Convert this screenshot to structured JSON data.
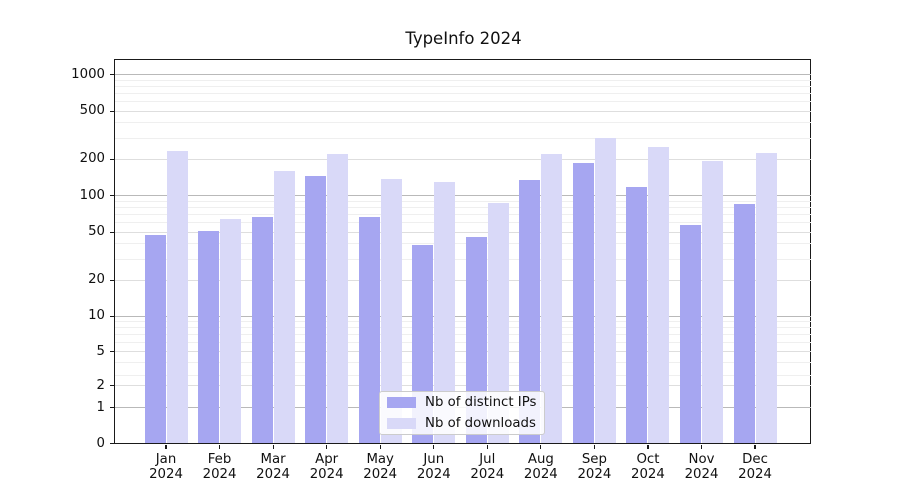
{
  "title": "TypeInfo 2024",
  "chart_data": {
    "type": "bar",
    "title": "TypeInfo 2024",
    "categories": [
      "Jan 2024",
      "Feb 2024",
      "Mar 2024",
      "Apr 2024",
      "May 2024",
      "Jun 2024",
      "Jul 2024",
      "Aug 2024",
      "Sep 2024",
      "Oct 2024",
      "Nov 2024",
      "Dec 2024"
    ],
    "series": [
      {
        "name": "Nb of distinct IPs",
        "color": "#a6a6f1",
        "values": [
          47,
          51,
          67,
          145,
          67,
          39,
          46,
          136,
          185,
          118,
          57,
          85
        ]
      },
      {
        "name": "Nb of downloads",
        "color": "#d9d9f8",
        "values": [
          235,
          64,
          160,
          222,
          137,
          130,
          87,
          220,
          300,
          252,
          193,
          225
        ]
      }
    ],
    "xlabel": "",
    "ylabel": "",
    "y_ticks": [
      1000,
      500,
      200,
      100,
      50,
      20,
      10,
      5,
      2,
      1,
      0
    ],
    "y_scale": "log-like (asinh) with compressed segment down to 0",
    "ylim": [
      0,
      1270
    ],
    "grid": true,
    "legend_position": "lower center"
  }
}
